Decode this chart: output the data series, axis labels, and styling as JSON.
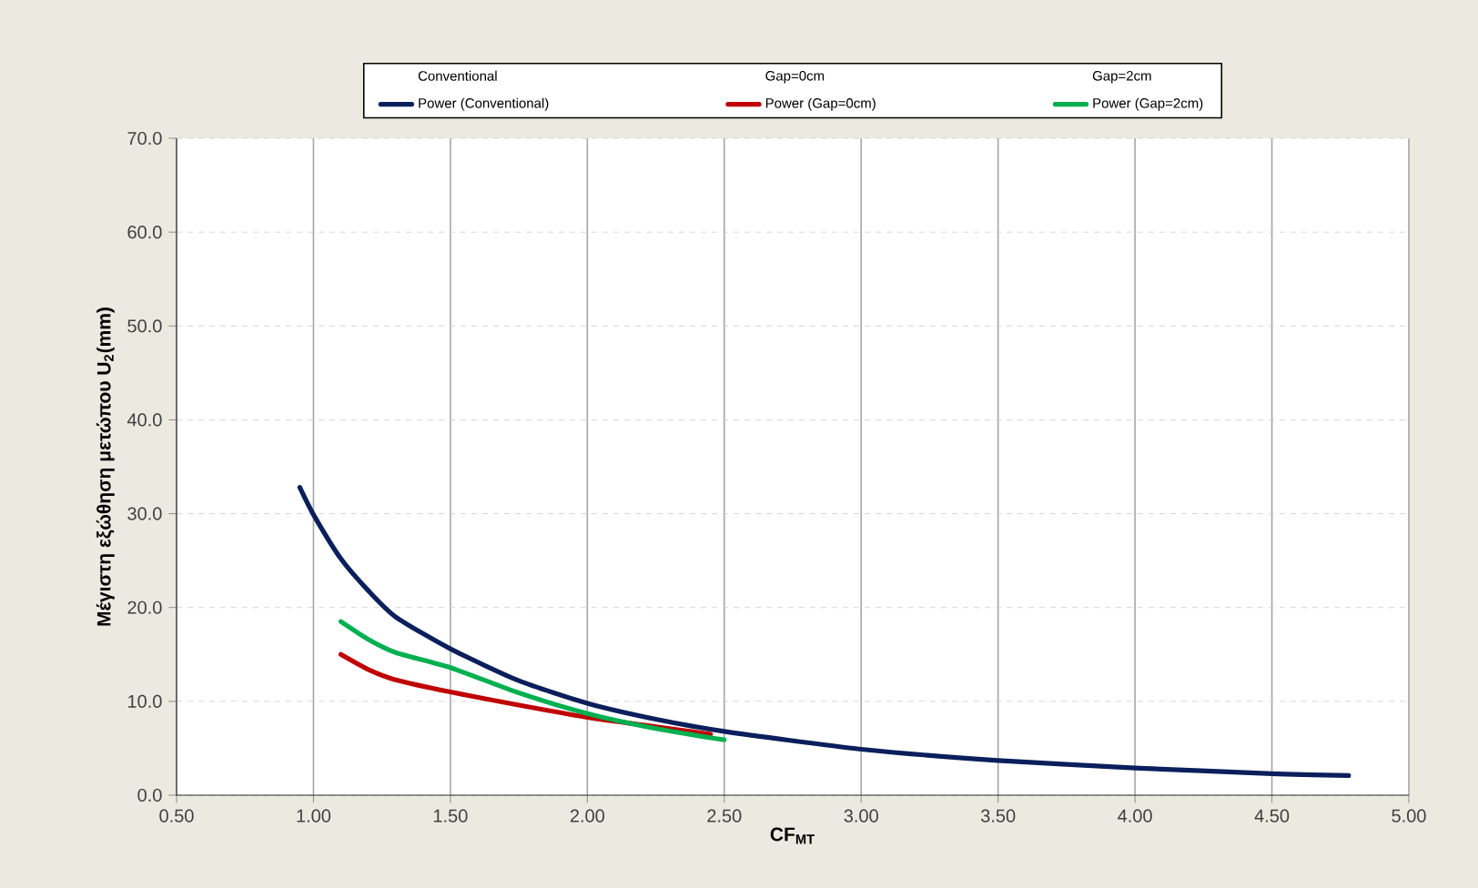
{
  "chart_data": {
    "type": "line",
    "xlabel": "CF$_{MT}$",
    "ylabel": "Μέγιστη εξώθηση μετώπου   U$_{2}$(mm)",
    "xlim": [
      0.5,
      5.0
    ],
    "ylim": [
      0,
      70
    ],
    "xticks": [
      {
        "value": 0.5,
        "label": "0.50"
      },
      {
        "value": 1.0,
        "label": "1.00"
      },
      {
        "value": 1.5,
        "label": "1.50"
      },
      {
        "value": 2.0,
        "label": "2.00"
      },
      {
        "value": 2.5,
        "label": "2.50"
      },
      {
        "value": 3.0,
        "label": "3.00"
      },
      {
        "value": 3.5,
        "label": "3.50"
      },
      {
        "value": 4.0,
        "label": "4.00"
      },
      {
        "value": 4.5,
        "label": "4.50"
      },
      {
        "value": 5.0,
        "label": "5.00"
      }
    ],
    "yticks": [
      {
        "value": 0,
        "label": "0.0"
      },
      {
        "value": 10,
        "label": "10.0"
      },
      {
        "value": 20,
        "label": "20.0"
      },
      {
        "value": 30,
        "label": "30.0"
      },
      {
        "value": 40,
        "label": "40.0"
      },
      {
        "value": 50,
        "label": "50.0"
      },
      {
        "value": 60,
        "label": "60.0"
      },
      {
        "value": 70,
        "label": "70.0"
      }
    ],
    "annotations": [
      "Conventional",
      "Gap=0cm",
      "Gap=2cm"
    ],
    "grid": true,
    "legend": "top",
    "marker": "none",
    "line_style": "solid",
    "series": [
      {
        "name": "Power (Conventional)",
        "color": "#0a1f5c",
        "x": [
          0.95,
          1.0,
          1.1,
          1.2,
          1.3,
          1.5,
          1.75,
          2.0,
          2.25,
          2.5,
          3.0,
          3.5,
          4.0,
          4.5,
          4.78
        ],
        "values": [
          32.8,
          29.9,
          25.2,
          21.8,
          19.0,
          15.6,
          12.2,
          9.8,
          8.1,
          6.8,
          4.9,
          3.7,
          2.9,
          2.3,
          2.1
        ]
      },
      {
        "name": "Power (Gap=0cm)",
        "color": "#c00000",
        "x": [
          1.1,
          1.2,
          1.3,
          1.5,
          1.75,
          2.0,
          2.25,
          2.45
        ],
        "values": [
          15.0,
          13.4,
          12.3,
          11.0,
          9.6,
          8.3,
          7.3,
          6.5
        ]
      },
      {
        "name": "Power (Gap=2cm)",
        "color": "#00b050",
        "x": [
          1.1,
          1.2,
          1.3,
          1.5,
          1.75,
          2.0,
          2.25,
          2.5
        ],
        "values": [
          18.5,
          16.6,
          15.2,
          13.6,
          10.9,
          8.7,
          7.1,
          5.9
        ]
      }
    ]
  }
}
